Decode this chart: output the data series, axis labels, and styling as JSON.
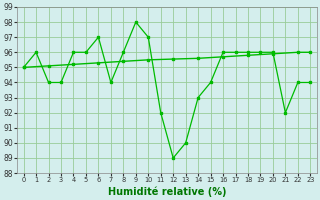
{
  "line1_x": [
    0,
    1,
    2,
    3,
    4,
    5,
    6,
    7,
    8,
    9,
    10,
    11,
    12,
    13,
    14,
    15,
    16,
    17,
    18,
    19,
    20,
    21,
    22,
    23
  ],
  "line1_y": [
    95,
    96,
    94,
    94,
    96,
    96,
    97,
    94,
    96,
    98,
    97,
    92,
    89,
    90,
    93,
    94,
    96,
    96,
    96,
    96,
    96,
    92,
    94,
    94
  ],
  "line2_x": [
    0,
    2,
    4,
    6,
    8,
    10,
    12,
    14,
    16,
    18,
    20,
    22,
    23
  ],
  "line2_y": [
    95.0,
    95.1,
    95.2,
    95.3,
    95.4,
    95.5,
    95.55,
    95.6,
    95.7,
    95.8,
    95.9,
    96.0,
    96.0
  ],
  "line_color": "#00bb00",
  "bg_color": "#d4eeed",
  "grid_color": "#99cc99",
  "xlabel": "Humidité relative (%)",
  "ylim": [
    88,
    99
  ],
  "xlim": [
    -0.5,
    23.5
  ],
  "yticks": [
    88,
    89,
    90,
    91,
    92,
    93,
    94,
    95,
    96,
    97,
    98,
    99
  ],
  "xticks": [
    0,
    1,
    2,
    3,
    4,
    5,
    6,
    7,
    8,
    9,
    10,
    11,
    12,
    13,
    14,
    15,
    16,
    17,
    18,
    19,
    20,
    21,
    22,
    23
  ],
  "xlabel_color": "#007700",
  "tick_color": "#333333",
  "xlabel_fontsize": 7,
  "ytick_fontsize": 5.5,
  "xtick_fontsize": 4.8
}
